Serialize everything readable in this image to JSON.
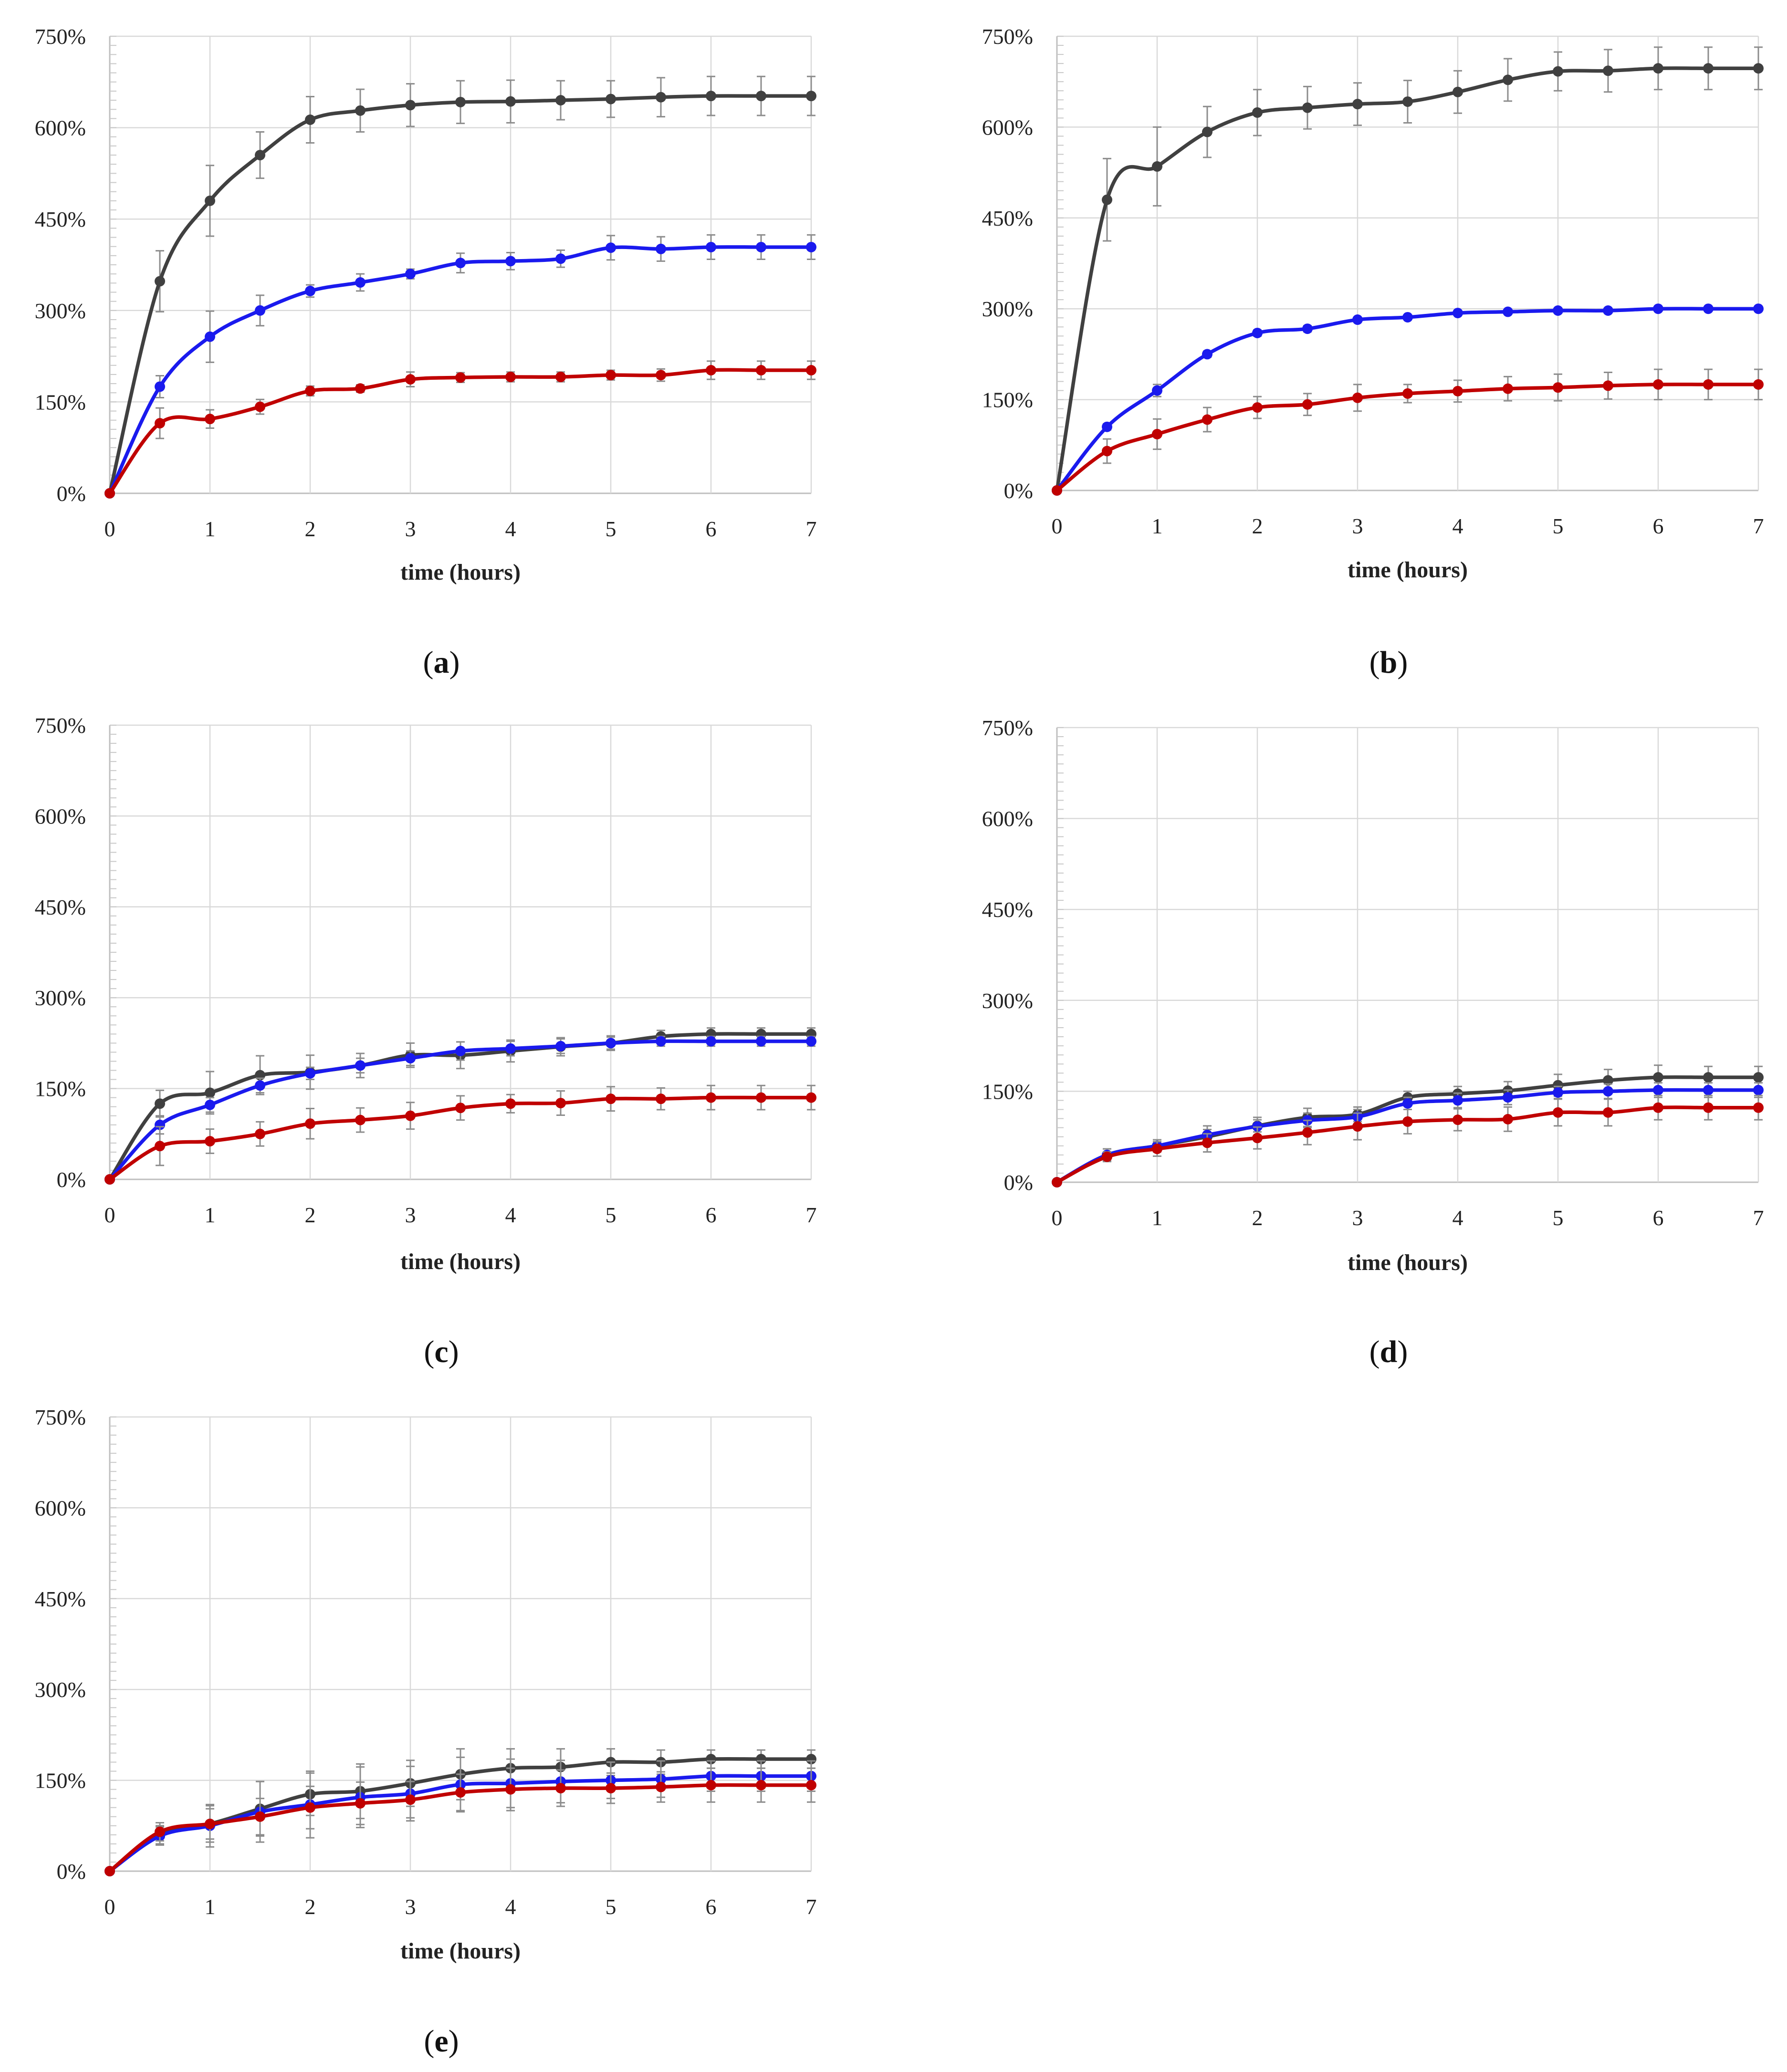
{
  "colors": {
    "dark": "#404040",
    "blue": "#1a1aee",
    "red": "#c00000",
    "err": "#8c8c8c",
    "grid": "#d9d9d9"
  },
  "chart_data": [
    {
      "type": "line",
      "caption": "a",
      "xlabel": "time (hours)",
      "ylabel": "",
      "xlim": [
        0,
        7
      ],
      "ylim": [
        0,
        750
      ],
      "x_ticks": [
        "0",
        "1",
        "2",
        "3",
        "4",
        "5",
        "6",
        "7"
      ],
      "y_ticks": [
        "0%",
        "150%",
        "300%",
        "450%",
        "600%",
        "750%"
      ],
      "x": [
        0,
        0.5,
        1,
        1.5,
        2,
        2.5,
        3,
        3.5,
        4,
        4.5,
        5,
        5.5,
        6,
        6.5,
        7
      ],
      "series": [
        {
          "name": "dark",
          "color": "#404040",
          "values": [
            0,
            348,
            480,
            555,
            613,
            628,
            637,
            642,
            643,
            645,
            647,
            650,
            652,
            652,
            652
          ],
          "errors": [
            0,
            50,
            58,
            38,
            38,
            35,
            35,
            35,
            35,
            32,
            30,
            32,
            32,
            32,
            32
          ]
        },
        {
          "name": "blue",
          "color": "#1a1aee",
          "values": [
            0,
            175,
            257,
            300,
            332,
            346,
            360,
            378,
            381,
            385,
            403,
            401,
            404,
            404,
            404
          ],
          "errors": [
            0,
            18,
            42,
            25,
            10,
            14,
            8,
            16,
            14,
            14,
            20,
            20,
            20,
            20,
            20
          ]
        },
        {
          "name": "red",
          "color": "#c00000",
          "values": [
            0,
            115,
            122,
            142,
            168,
            172,
            187,
            190,
            191,
            191,
            194,
            194,
            202,
            202,
            202
          ],
          "errors": [
            0,
            25,
            15,
            12,
            8,
            6,
            12,
            8,
            8,
            8,
            8,
            10,
            15,
            15,
            15
          ]
        }
      ]
    },
    {
      "type": "line",
      "caption": "b",
      "xlabel": "time (hours)",
      "ylabel": "",
      "xlim": [
        0,
        7
      ],
      "ylim": [
        0,
        750
      ],
      "x_ticks": [
        "0",
        "1",
        "2",
        "3",
        "4",
        "5",
        "6",
        "7"
      ],
      "y_ticks": [
        "0%",
        "150%",
        "300%",
        "450%",
        "600%",
        "750%"
      ],
      "x": [
        0,
        0.5,
        1,
        1.5,
        2,
        2.5,
        3,
        3.5,
        4,
        4.5,
        5,
        5.5,
        6,
        6.5,
        7
      ],
      "series": [
        {
          "name": "dark",
          "color": "#404040",
          "values": [
            0,
            480,
            535,
            592,
            624,
            632,
            638,
            642,
            658,
            678,
            692,
            693,
            697,
            697,
            697
          ],
          "errors": [
            0,
            68,
            65,
            42,
            38,
            35,
            35,
            35,
            35,
            35,
            32,
            35,
            35,
            35,
            35
          ]
        },
        {
          "name": "blue",
          "color": "#1a1aee",
          "values": [
            0,
            105,
            165,
            225,
            260,
            267,
            282,
            286,
            293,
            295,
            297,
            297,
            300,
            300,
            300
          ],
          "errors": [
            0,
            5,
            10,
            5,
            5,
            5,
            3,
            3,
            3,
            3,
            3,
            3,
            3,
            3,
            3
          ]
        },
        {
          "name": "red",
          "color": "#c00000",
          "values": [
            0,
            65,
            93,
            117,
            137,
            142,
            153,
            160,
            164,
            168,
            170,
            173,
            175,
            175,
            175
          ],
          "errors": [
            0,
            20,
            25,
            20,
            18,
            18,
            22,
            15,
            18,
            20,
            22,
            22,
            25,
            25,
            25
          ]
        }
      ]
    },
    {
      "type": "line",
      "caption": "c",
      "xlabel": "time (hours)",
      "ylabel": "",
      "xlim": [
        0,
        7
      ],
      "ylim": [
        0,
        750
      ],
      "x_ticks": [
        "0",
        "1",
        "2",
        "3",
        "4",
        "5",
        "6",
        "7"
      ],
      "y_ticks": [
        "0%",
        "150%",
        "300%",
        "450%",
        "600%",
        "750%"
      ],
      "x": [
        0,
        0.5,
        1,
        1.5,
        2,
        2.5,
        3,
        3.5,
        4,
        4.5,
        5,
        5.5,
        6,
        6.5,
        7
      ],
      "series": [
        {
          "name": "dark",
          "color": "#404040",
          "values": [
            0,
            125,
            143,
            172,
            177,
            188,
            205,
            205,
            212,
            219,
            225,
            236,
            240,
            240,
            240
          ],
          "errors": [
            0,
            22,
            35,
            32,
            28,
            20,
            20,
            22,
            18,
            15,
            12,
            10,
            10,
            10,
            10
          ]
        },
        {
          "name": "blue",
          "color": "#1a1aee",
          "values": [
            0,
            90,
            123,
            155,
            175,
            188,
            200,
            212,
            216,
            220,
            225,
            228,
            228,
            228,
            228
          ],
          "errors": [
            0,
            15,
            12,
            12,
            10,
            12,
            12,
            15,
            12,
            12,
            10,
            8,
            8,
            8,
            8
          ]
        },
        {
          "name": "red",
          "color": "#c00000",
          "values": [
            0,
            55,
            63,
            75,
            92,
            98,
            105,
            118,
            125,
            126,
            133,
            133,
            135,
            135,
            135
          ],
          "errors": [
            0,
            32,
            20,
            20,
            25,
            20,
            22,
            20,
            15,
            20,
            20,
            18,
            20,
            20,
            20
          ]
        }
      ]
    },
    {
      "type": "line",
      "caption": "d",
      "xlabel": "time (hours)",
      "ylabel": "",
      "xlim": [
        0,
        7
      ],
      "ylim": [
        0,
        750
      ],
      "x_ticks": [
        "0",
        "1",
        "2",
        "3",
        "4",
        "5",
        "6",
        "7"
      ],
      "y_ticks": [
        "0%",
        "150%",
        "300%",
        "450%",
        "600%",
        "750%"
      ],
      "x": [
        0,
        0.5,
        1,
        1.5,
        2,
        2.5,
        3,
        3.5,
        4,
        4.5,
        5,
        5.5,
        6,
        6.5,
        7
      ],
      "series": [
        {
          "name": "dark",
          "color": "#404040",
          "values": [
            0,
            45,
            60,
            75,
            93,
            107,
            112,
            140,
            146,
            151,
            160,
            168,
            173,
            173,
            173
          ],
          "errors": [
            0,
            10,
            10,
            12,
            10,
            15,
            12,
            10,
            12,
            15,
            18,
            18,
            20,
            18,
            18
          ]
        },
        {
          "name": "blue",
          "color": "#1a1aee",
          "values": [
            0,
            45,
            60,
            78,
            92,
            102,
            108,
            130,
            135,
            140,
            148,
            150,
            152,
            152,
            152
          ],
          "errors": [
            0,
            10,
            10,
            15,
            15,
            12,
            12,
            10,
            12,
            12,
            10,
            12,
            12,
            12,
            12
          ]
        },
        {
          "name": "red",
          "color": "#c00000",
          "values": [
            0,
            42,
            55,
            65,
            73,
            82,
            92,
            100,
            103,
            104,
            115,
            115,
            123,
            123,
            123
          ],
          "errors": [
            0,
            8,
            12,
            15,
            18,
            20,
            22,
            20,
            18,
            20,
            22,
            22,
            20,
            20,
            20
          ]
        }
      ]
    },
    {
      "type": "line",
      "caption": "e",
      "xlabel": "time (hours)",
      "ylabel": "",
      "xlim": [
        0,
        7
      ],
      "ylim": [
        0,
        750
      ],
      "x_ticks": [
        "0",
        "1",
        "2",
        "3",
        "4",
        "5",
        "6",
        "7"
      ],
      "y_ticks": [
        "0%",
        "150%",
        "300%",
        "450%",
        "600%",
        "750%"
      ],
      "x": [
        0,
        0.5,
        1,
        1.5,
        2,
        2.5,
        3,
        3.5,
        4,
        4.5,
        5,
        5.5,
        6,
        6.5,
        7
      ],
      "series": [
        {
          "name": "dark",
          "color": "#404040",
          "values": [
            0,
            60,
            78,
            103,
            127,
            132,
            145,
            160,
            170,
            172,
            180,
            180,
            185,
            185,
            185
          ],
          "errors": [
            0,
            15,
            30,
            45,
            35,
            45,
            38,
            42,
            32,
            30,
            22,
            20,
            15,
            15,
            15
          ]
        },
        {
          "name": "blue",
          "color": "#1a1aee",
          "values": [
            0,
            58,
            75,
            98,
            110,
            122,
            128,
            143,
            145,
            148,
            150,
            152,
            157,
            157,
            157
          ],
          "errors": [
            0,
            15,
            35,
            50,
            55,
            50,
            45,
            45,
            40,
            35,
            30,
            30,
            25,
            25,
            25
          ]
        },
        {
          "name": "red",
          "color": "#c00000",
          "values": [
            0,
            65,
            78,
            90,
            105,
            112,
            118,
            130,
            135,
            137,
            137,
            139,
            142,
            142,
            142
          ],
          "errors": [
            0,
            15,
            25,
            30,
            35,
            35,
            30,
            30,
            35,
            30,
            25,
            25,
            28,
            28,
            28
          ]
        }
      ]
    }
  ]
}
